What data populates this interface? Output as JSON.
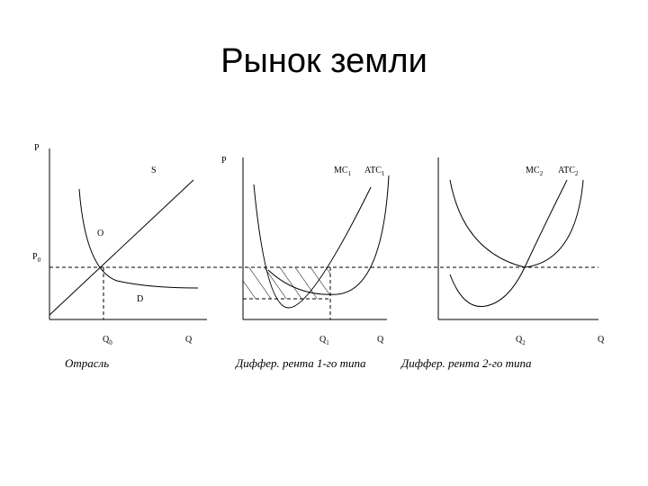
{
  "title": "Рынок земли",
  "panels": [
    {
      "caption": "Отрасль",
      "y_axis": "P",
      "x_axis": "Q",
      "labels": {
        "supply": "S",
        "point": "O",
        "demand": "D",
        "price": {
          "text": "P",
          "sub": "0"
        },
        "quantity": {
          "text": "Q",
          "sub": "0"
        }
      }
    },
    {
      "caption": "Диффер. рента 1-го типа",
      "y_axis": "P",
      "x_axis": "Q",
      "labels": {
        "mc": {
          "text": "MC",
          "sub": "1"
        },
        "atc": {
          "text": "ATC",
          "sub": "1"
        },
        "quantity": {
          "text": "Q",
          "sub": "1"
        }
      }
    },
    {
      "caption": "Диффер. рента 2-го типа",
      "x_axis": "Q",
      "labels": {
        "mc": {
          "text": "MC",
          "sub": "2"
        },
        "atc": {
          "text": "ATC",
          "sub": "2"
        },
        "quantity": {
          "text": "Q",
          "sub": "2"
        }
      }
    }
  ]
}
